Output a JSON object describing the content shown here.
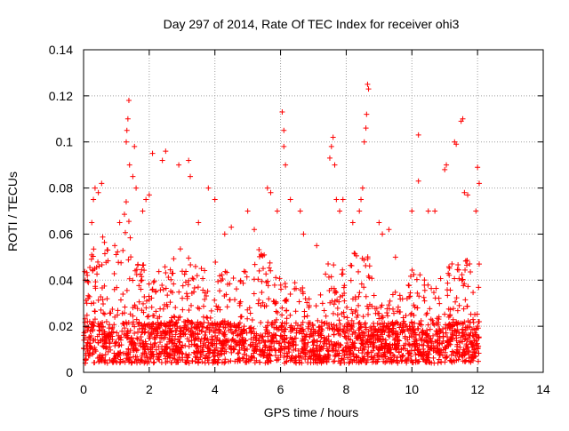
{
  "chart_data": {
    "type": "scatter",
    "title": "Day 297 of 2014, Rate Of TEC Index for receiver ohi3",
    "xlabel": "GPS time / hours",
    "ylabel": "ROTI / TECUs",
    "xlim": [
      0,
      14
    ],
    "ylim": [
      0,
      0.14
    ],
    "xticks": [
      0,
      2,
      4,
      6,
      8,
      10,
      12,
      14
    ],
    "xtick_labels": [
      "0",
      "2",
      "4",
      "6",
      "8",
      "10",
      "12",
      "14"
    ],
    "yticks": [
      0,
      0.02,
      0.04,
      0.06,
      0.08,
      0.1,
      0.12,
      0.14
    ],
    "ytick_labels": [
      "0",
      "0.02",
      "0.04",
      "0.06",
      "0.08",
      "0.1",
      "0.12",
      "0.14"
    ],
    "grid": true,
    "marker": "+",
    "series_color": "#ff0000",
    "background_points": {
      "x_range": [
        0,
        12.05
      ],
      "base_min": 0.004,
      "base_max": 0.022,
      "upper_profile": [
        [
          0.0,
          0.045
        ],
        [
          0.5,
          0.06
        ],
        [
          1.0,
          0.055
        ],
        [
          1.3,
          0.075
        ],
        [
          1.6,
          0.06
        ],
        [
          2.0,
          0.04
        ],
        [
          2.3,
          0.045
        ],
        [
          3.0,
          0.055
        ],
        [
          3.5,
          0.045
        ],
        [
          4.0,
          0.05
        ],
        [
          4.5,
          0.045
        ],
        [
          5.0,
          0.05
        ],
        [
          5.5,
          0.055
        ],
        [
          6.0,
          0.045
        ],
        [
          6.5,
          0.04
        ],
        [
          7.0,
          0.035
        ],
        [
          7.5,
          0.05
        ],
        [
          8.0,
          0.045
        ],
        [
          8.5,
          0.06
        ],
        [
          9.0,
          0.03
        ],
        [
          9.5,
          0.035
        ],
        [
          10.0,
          0.045
        ],
        [
          10.5,
          0.04
        ],
        [
          11.0,
          0.045
        ],
        [
          11.5,
          0.055
        ],
        [
          12.0,
          0.04
        ]
      ],
      "count": 2600
    },
    "peak_points": [
      {
        "x": 0.05,
        "y": 0.04
      },
      {
        "x": 0.1,
        "y": 0.03
      },
      {
        "x": 0.25,
        "y": 0.065
      },
      {
        "x": 0.3,
        "y": 0.075
      },
      {
        "x": 0.35,
        "y": 0.08
      },
      {
        "x": 0.45,
        "y": 0.078
      },
      {
        "x": 0.55,
        "y": 0.082
      },
      {
        "x": 0.95,
        "y": 0.055
      },
      {
        "x": 1.1,
        "y": 0.065
      },
      {
        "x": 1.3,
        "y": 0.1
      },
      {
        "x": 1.32,
        "y": 0.105
      },
      {
        "x": 1.35,
        "y": 0.11
      },
      {
        "x": 1.38,
        "y": 0.118
      },
      {
        "x": 1.4,
        "y": 0.09
      },
      {
        "x": 1.5,
        "y": 0.085
      },
      {
        "x": 1.55,
        "y": 0.098
      },
      {
        "x": 1.6,
        "y": 0.08
      },
      {
        "x": 1.8,
        "y": 0.07
      },
      {
        "x": 1.9,
        "y": 0.075
      },
      {
        "x": 2.0,
        "y": 0.077
      },
      {
        "x": 2.1,
        "y": 0.095
      },
      {
        "x": 2.4,
        "y": 0.092
      },
      {
        "x": 2.5,
        "y": 0.096
      },
      {
        "x": 2.9,
        "y": 0.09
      },
      {
        "x": 3.2,
        "y": 0.092
      },
      {
        "x": 3.25,
        "y": 0.085
      },
      {
        "x": 3.5,
        "y": 0.065
      },
      {
        "x": 3.8,
        "y": 0.08
      },
      {
        "x": 4.0,
        "y": 0.075
      },
      {
        "x": 4.3,
        "y": 0.06
      },
      {
        "x": 4.5,
        "y": 0.063
      },
      {
        "x": 5.0,
        "y": 0.07
      },
      {
        "x": 5.2,
        "y": 0.062
      },
      {
        "x": 5.6,
        "y": 0.08
      },
      {
        "x": 5.7,
        "y": 0.078
      },
      {
        "x": 5.9,
        "y": 0.07
      },
      {
        "x": 6.05,
        "y": 0.113
      },
      {
        "x": 6.1,
        "y": 0.105
      },
      {
        "x": 6.1,
        "y": 0.098
      },
      {
        "x": 6.15,
        "y": 0.09
      },
      {
        "x": 6.3,
        "y": 0.075
      },
      {
        "x": 6.6,
        "y": 0.07
      },
      {
        "x": 6.7,
        "y": 0.06
      },
      {
        "x": 7.1,
        "y": 0.055
      },
      {
        "x": 7.5,
        "y": 0.093
      },
      {
        "x": 7.55,
        "y": 0.098
      },
      {
        "x": 7.6,
        "y": 0.102
      },
      {
        "x": 7.65,
        "y": 0.09
      },
      {
        "x": 7.7,
        "y": 0.075
      },
      {
        "x": 7.8,
        "y": 0.07
      },
      {
        "x": 7.9,
        "y": 0.075
      },
      {
        "x": 8.2,
        "y": 0.065
      },
      {
        "x": 8.4,
        "y": 0.07
      },
      {
        "x": 8.45,
        "y": 0.075
      },
      {
        "x": 8.5,
        "y": 0.08
      },
      {
        "x": 8.55,
        "y": 0.1
      },
      {
        "x": 8.6,
        "y": 0.106
      },
      {
        "x": 8.62,
        "y": 0.112
      },
      {
        "x": 8.65,
        "y": 0.125
      },
      {
        "x": 8.68,
        "y": 0.123
      },
      {
        "x": 9.0,
        "y": 0.065
      },
      {
        "x": 9.1,
        "y": 0.06
      },
      {
        "x": 9.3,
        "y": 0.062
      },
      {
        "x": 9.5,
        "y": 0.05
      },
      {
        "x": 10.0,
        "y": 0.07
      },
      {
        "x": 10.2,
        "y": 0.103
      },
      {
        "x": 10.2,
        "y": 0.083
      },
      {
        "x": 10.5,
        "y": 0.07
      },
      {
        "x": 10.7,
        "y": 0.07
      },
      {
        "x": 11.0,
        "y": 0.088
      },
      {
        "x": 11.05,
        "y": 0.09
      },
      {
        "x": 11.3,
        "y": 0.1
      },
      {
        "x": 11.35,
        "y": 0.099
      },
      {
        "x": 11.5,
        "y": 0.109
      },
      {
        "x": 11.55,
        "y": 0.11
      },
      {
        "x": 11.6,
        "y": 0.078
      },
      {
        "x": 11.7,
        "y": 0.077
      },
      {
        "x": 11.95,
        "y": 0.07
      },
      {
        "x": 12.0,
        "y": 0.089
      },
      {
        "x": 12.05,
        "y": 0.082
      },
      {
        "x": 12.05,
        "y": 0.047
      }
    ]
  }
}
